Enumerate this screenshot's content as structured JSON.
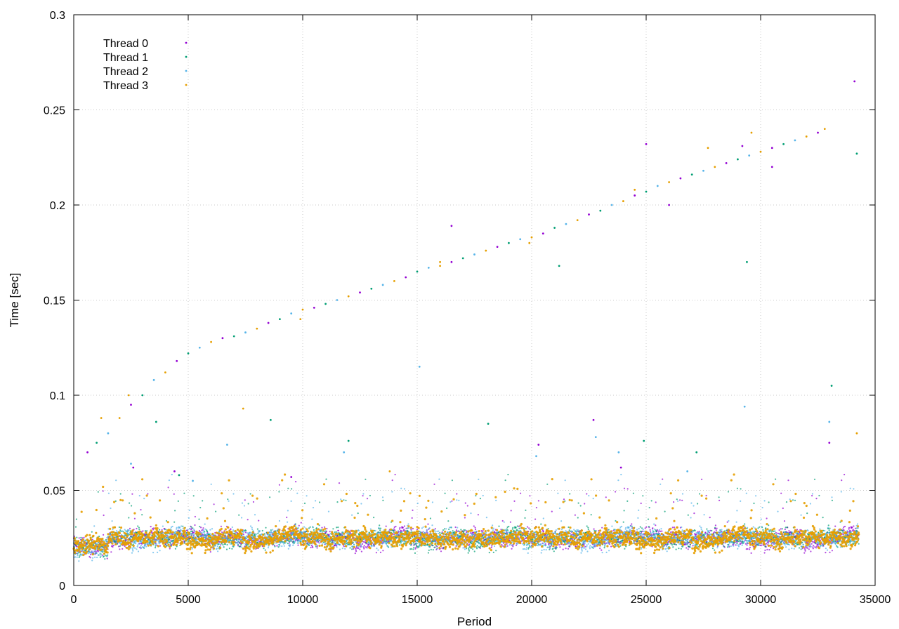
{
  "chart_data": {
    "type": "scatter",
    "title": "",
    "xlabel": "Period",
    "ylabel": "Time [sec]",
    "xlim": [
      0,
      35000
    ],
    "ylim": [
      0,
      0.3
    ],
    "xticks": [
      0,
      5000,
      10000,
      15000,
      20000,
      25000,
      30000,
      35000
    ],
    "yticks": [
      0,
      0.05,
      0.1,
      0.15,
      0.2,
      0.25,
      0.3
    ],
    "xtick_labels": [
      "0",
      "5000",
      "10000",
      "15000",
      "20000",
      "25000",
      "30000",
      "35000"
    ],
    "ytick_labels": [
      "0",
      "0.05",
      "0.1",
      "0.15",
      "0.2",
      "0.25",
      "0.3"
    ],
    "grid": true,
    "legend_position": "top-left",
    "n_points_per_series": 34300,
    "baseline_time_band": [
      0.015,
      0.035
    ],
    "series": [
      {
        "name": "Thread 0",
        "color": "#9400d3",
        "marker": "dot",
        "outliers": [
          [
            2600,
            0.062
          ],
          [
            4400,
            0.06
          ],
          [
            9500,
            0.057
          ],
          [
            16500,
            0.189
          ],
          [
            20300,
            0.074
          ],
          [
            22700,
            0.087
          ],
          [
            23900,
            0.062
          ],
          [
            25000,
            0.232
          ],
          [
            26000,
            0.2
          ],
          [
            29200,
            0.231
          ],
          [
            30500,
            0.22
          ],
          [
            33000,
            0.075
          ],
          [
            34100,
            0.265
          ]
        ]
      },
      {
        "name": "Thread 1",
        "color": "#009e73",
        "marker": "plus",
        "outliers": [
          [
            3600,
            0.086
          ],
          [
            4600,
            0.058
          ],
          [
            8600,
            0.087
          ],
          [
            12000,
            0.076
          ],
          [
            18100,
            0.085
          ],
          [
            21200,
            0.168
          ],
          [
            24900,
            0.076
          ],
          [
            27200,
            0.07
          ],
          [
            29400,
            0.17
          ],
          [
            33100,
            0.105
          ],
          [
            34200,
            0.227
          ]
        ]
      },
      {
        "name": "Thread 2",
        "color": "#56b4e9",
        "marker": "x",
        "outliers": [
          [
            2500,
            0.064
          ],
          [
            5200,
            0.055
          ],
          [
            6700,
            0.074
          ],
          [
            11800,
            0.07
          ],
          [
            15100,
            0.115
          ],
          [
            20200,
            0.068
          ],
          [
            22800,
            0.078
          ],
          [
            23800,
            0.07
          ],
          [
            26800,
            0.06
          ],
          [
            29300,
            0.094
          ],
          [
            33000,
            0.086
          ]
        ]
      },
      {
        "name": "Thread 3",
        "color": "#e69f00",
        "marker": "square",
        "outliers": [
          [
            1200,
            0.088
          ],
          [
            2400,
            0.1
          ],
          [
            7400,
            0.093
          ],
          [
            9900,
            0.14
          ],
          [
            13800,
            0.06
          ],
          [
            16000,
            0.17
          ],
          [
            19900,
            0.18
          ],
          [
            24500,
            0.208
          ],
          [
            27700,
            0.23
          ],
          [
            29600,
            0.238
          ],
          [
            32800,
            0.24
          ],
          [
            34200,
            0.08
          ]
        ]
      }
    ],
    "trend_points": [
      [
        600,
        0.07
      ],
      [
        1000,
        0.075
      ],
      [
        1500,
        0.08
      ],
      [
        2000,
        0.088
      ],
      [
        2500,
        0.095
      ],
      [
        3000,
        0.1
      ],
      [
        3500,
        0.108
      ],
      [
        4000,
        0.112
      ],
      [
        4500,
        0.118
      ],
      [
        5000,
        0.122
      ],
      [
        5500,
        0.125
      ],
      [
        6000,
        0.128
      ],
      [
        6500,
        0.13
      ],
      [
        7000,
        0.131
      ],
      [
        7500,
        0.133
      ],
      [
        8000,
        0.135
      ],
      [
        8500,
        0.138
      ],
      [
        9000,
        0.14
      ],
      [
        9500,
        0.143
      ],
      [
        10000,
        0.145
      ],
      [
        10500,
        0.146
      ],
      [
        11000,
        0.148
      ],
      [
        11500,
        0.15
      ],
      [
        12000,
        0.152
      ],
      [
        12500,
        0.154
      ],
      [
        13000,
        0.156
      ],
      [
        13500,
        0.158
      ],
      [
        14000,
        0.16
      ],
      [
        14500,
        0.162
      ],
      [
        15000,
        0.165
      ],
      [
        15500,
        0.167
      ],
      [
        16000,
        0.168
      ],
      [
        16500,
        0.17
      ],
      [
        17000,
        0.172
      ],
      [
        17500,
        0.174
      ],
      [
        18000,
        0.176
      ],
      [
        18500,
        0.178
      ],
      [
        19000,
        0.18
      ],
      [
        19500,
        0.182
      ],
      [
        20000,
        0.183
      ],
      [
        20500,
        0.185
      ],
      [
        21000,
        0.188
      ],
      [
        21500,
        0.19
      ],
      [
        22000,
        0.192
      ],
      [
        22500,
        0.195
      ],
      [
        23000,
        0.197
      ],
      [
        23500,
        0.2
      ],
      [
        24000,
        0.202
      ],
      [
        24500,
        0.205
      ],
      [
        25000,
        0.207
      ],
      [
        25500,
        0.21
      ],
      [
        26000,
        0.212
      ],
      [
        26500,
        0.214
      ],
      [
        27000,
        0.216
      ],
      [
        27500,
        0.218
      ],
      [
        28000,
        0.22
      ],
      [
        28500,
        0.222
      ],
      [
        29000,
        0.224
      ],
      [
        29500,
        0.226
      ],
      [
        30000,
        0.228
      ],
      [
        30500,
        0.23
      ],
      [
        31000,
        0.232
      ],
      [
        31500,
        0.234
      ],
      [
        32000,
        0.236
      ],
      [
        32500,
        0.238
      ]
    ]
  }
}
